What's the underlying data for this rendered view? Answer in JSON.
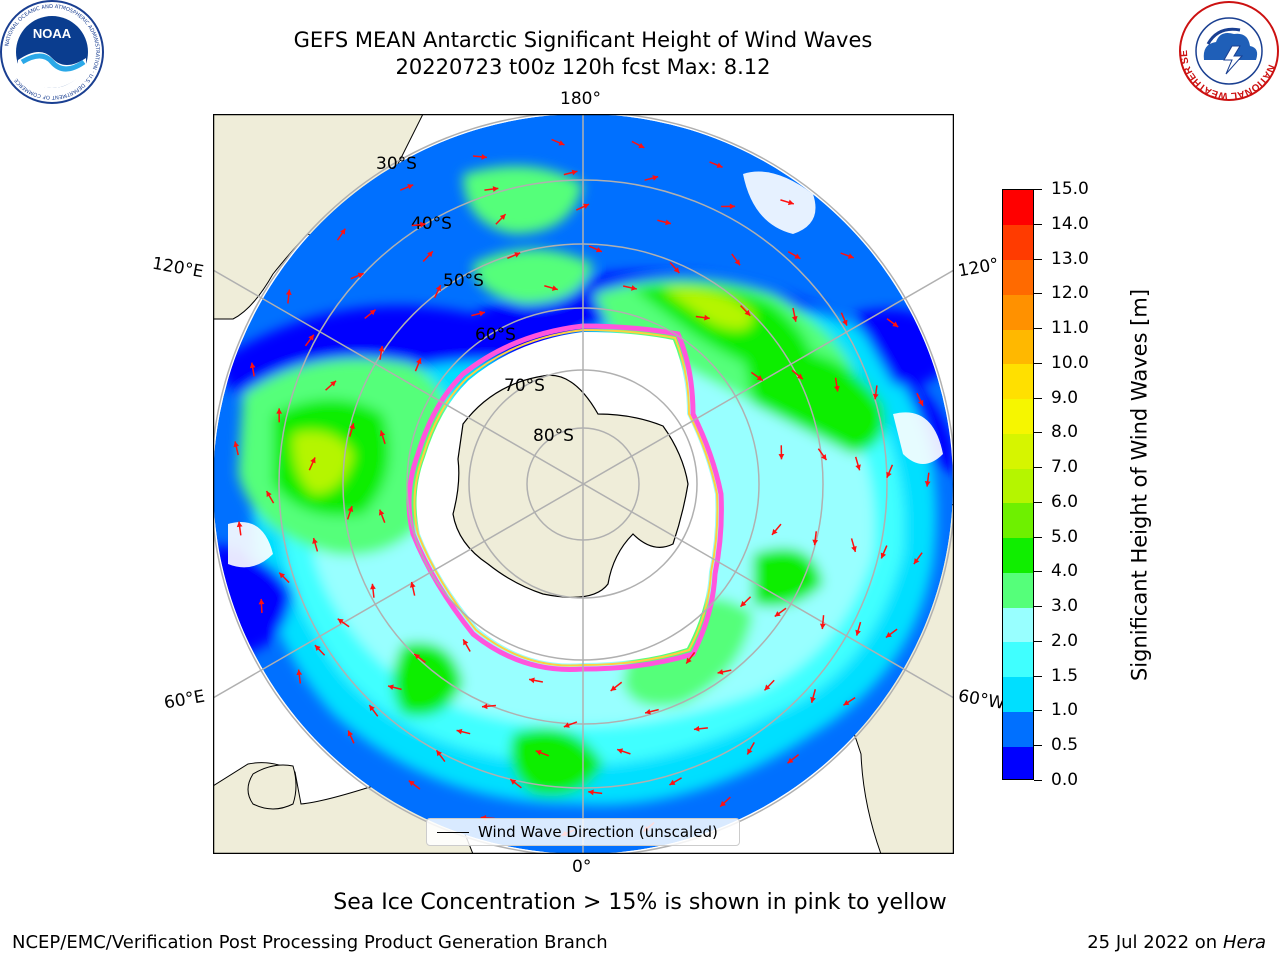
{
  "header": {
    "title_line1": "GEFS MEAN Antarctic Significant Height of Wind Waves",
    "title_line2": "20220723 t00z 120h fcst   Max: 8.12"
  },
  "logos": {
    "noaa": "NOAA",
    "noaa_ring": "NATIONAL OCEANIC AND ATMOSPHERIC ADMINISTRATION · U.S. DEPARTMENT OF COMMERCE",
    "nws_ring": "NATIONAL WEATHER SERVICE"
  },
  "map": {
    "projection": "south-polar stereographic",
    "lon_labels": {
      "top": "180°",
      "bottom": "0°",
      "left_upper": "120°E",
      "left_lower": "60°E",
      "right_upper": "120°",
      "right_lower": "60°W"
    },
    "lat_labels": [
      "30°S",
      "40°S",
      "50°S",
      "60°S",
      "70°S",
      "80°S"
    ],
    "colors": {
      "land": "#efedd9",
      "ice_zone": "#ffffff",
      "ice_edge": [
        "#ff55dd",
        "#ffd040"
      ],
      "graticule": "#b0b0b0",
      "arrows": "#ff1010"
    }
  },
  "legend": {
    "label": "Wind Wave Direction (unscaled)"
  },
  "colorbar": {
    "title": "Significant Height of Wind Waves [m]",
    "ticks": [
      "15.0",
      "14.0",
      "13.0",
      "12.0",
      "11.0",
      "10.0",
      "9.0",
      "8.0",
      "7.0",
      "6.0",
      "5.0",
      "4.0",
      "3.0",
      "2.0",
      "1.5",
      "1.0",
      "0.5",
      "0.0"
    ],
    "colors_bottom_to_top": [
      "#0000ff",
      "#0070ff",
      "#00dfff",
      "#40ffff",
      "#98ffff",
      "#55ff7a",
      "#10ee00",
      "#6ef000",
      "#b5f500",
      "#d6f500",
      "#f6f600",
      "#ffe000",
      "#ffb800",
      "#ff9100",
      "#ff6a00",
      "#ff3b00",
      "#ff0000"
    ]
  },
  "caption": "Sea Ice Concentration > 15% is shown in pink to yellow",
  "footer": {
    "left": "NCEP/EMC/Verification Post Processing Product Generation Branch",
    "right_prefix": "25 Jul 2022 on ",
    "right_host": "Hera"
  }
}
